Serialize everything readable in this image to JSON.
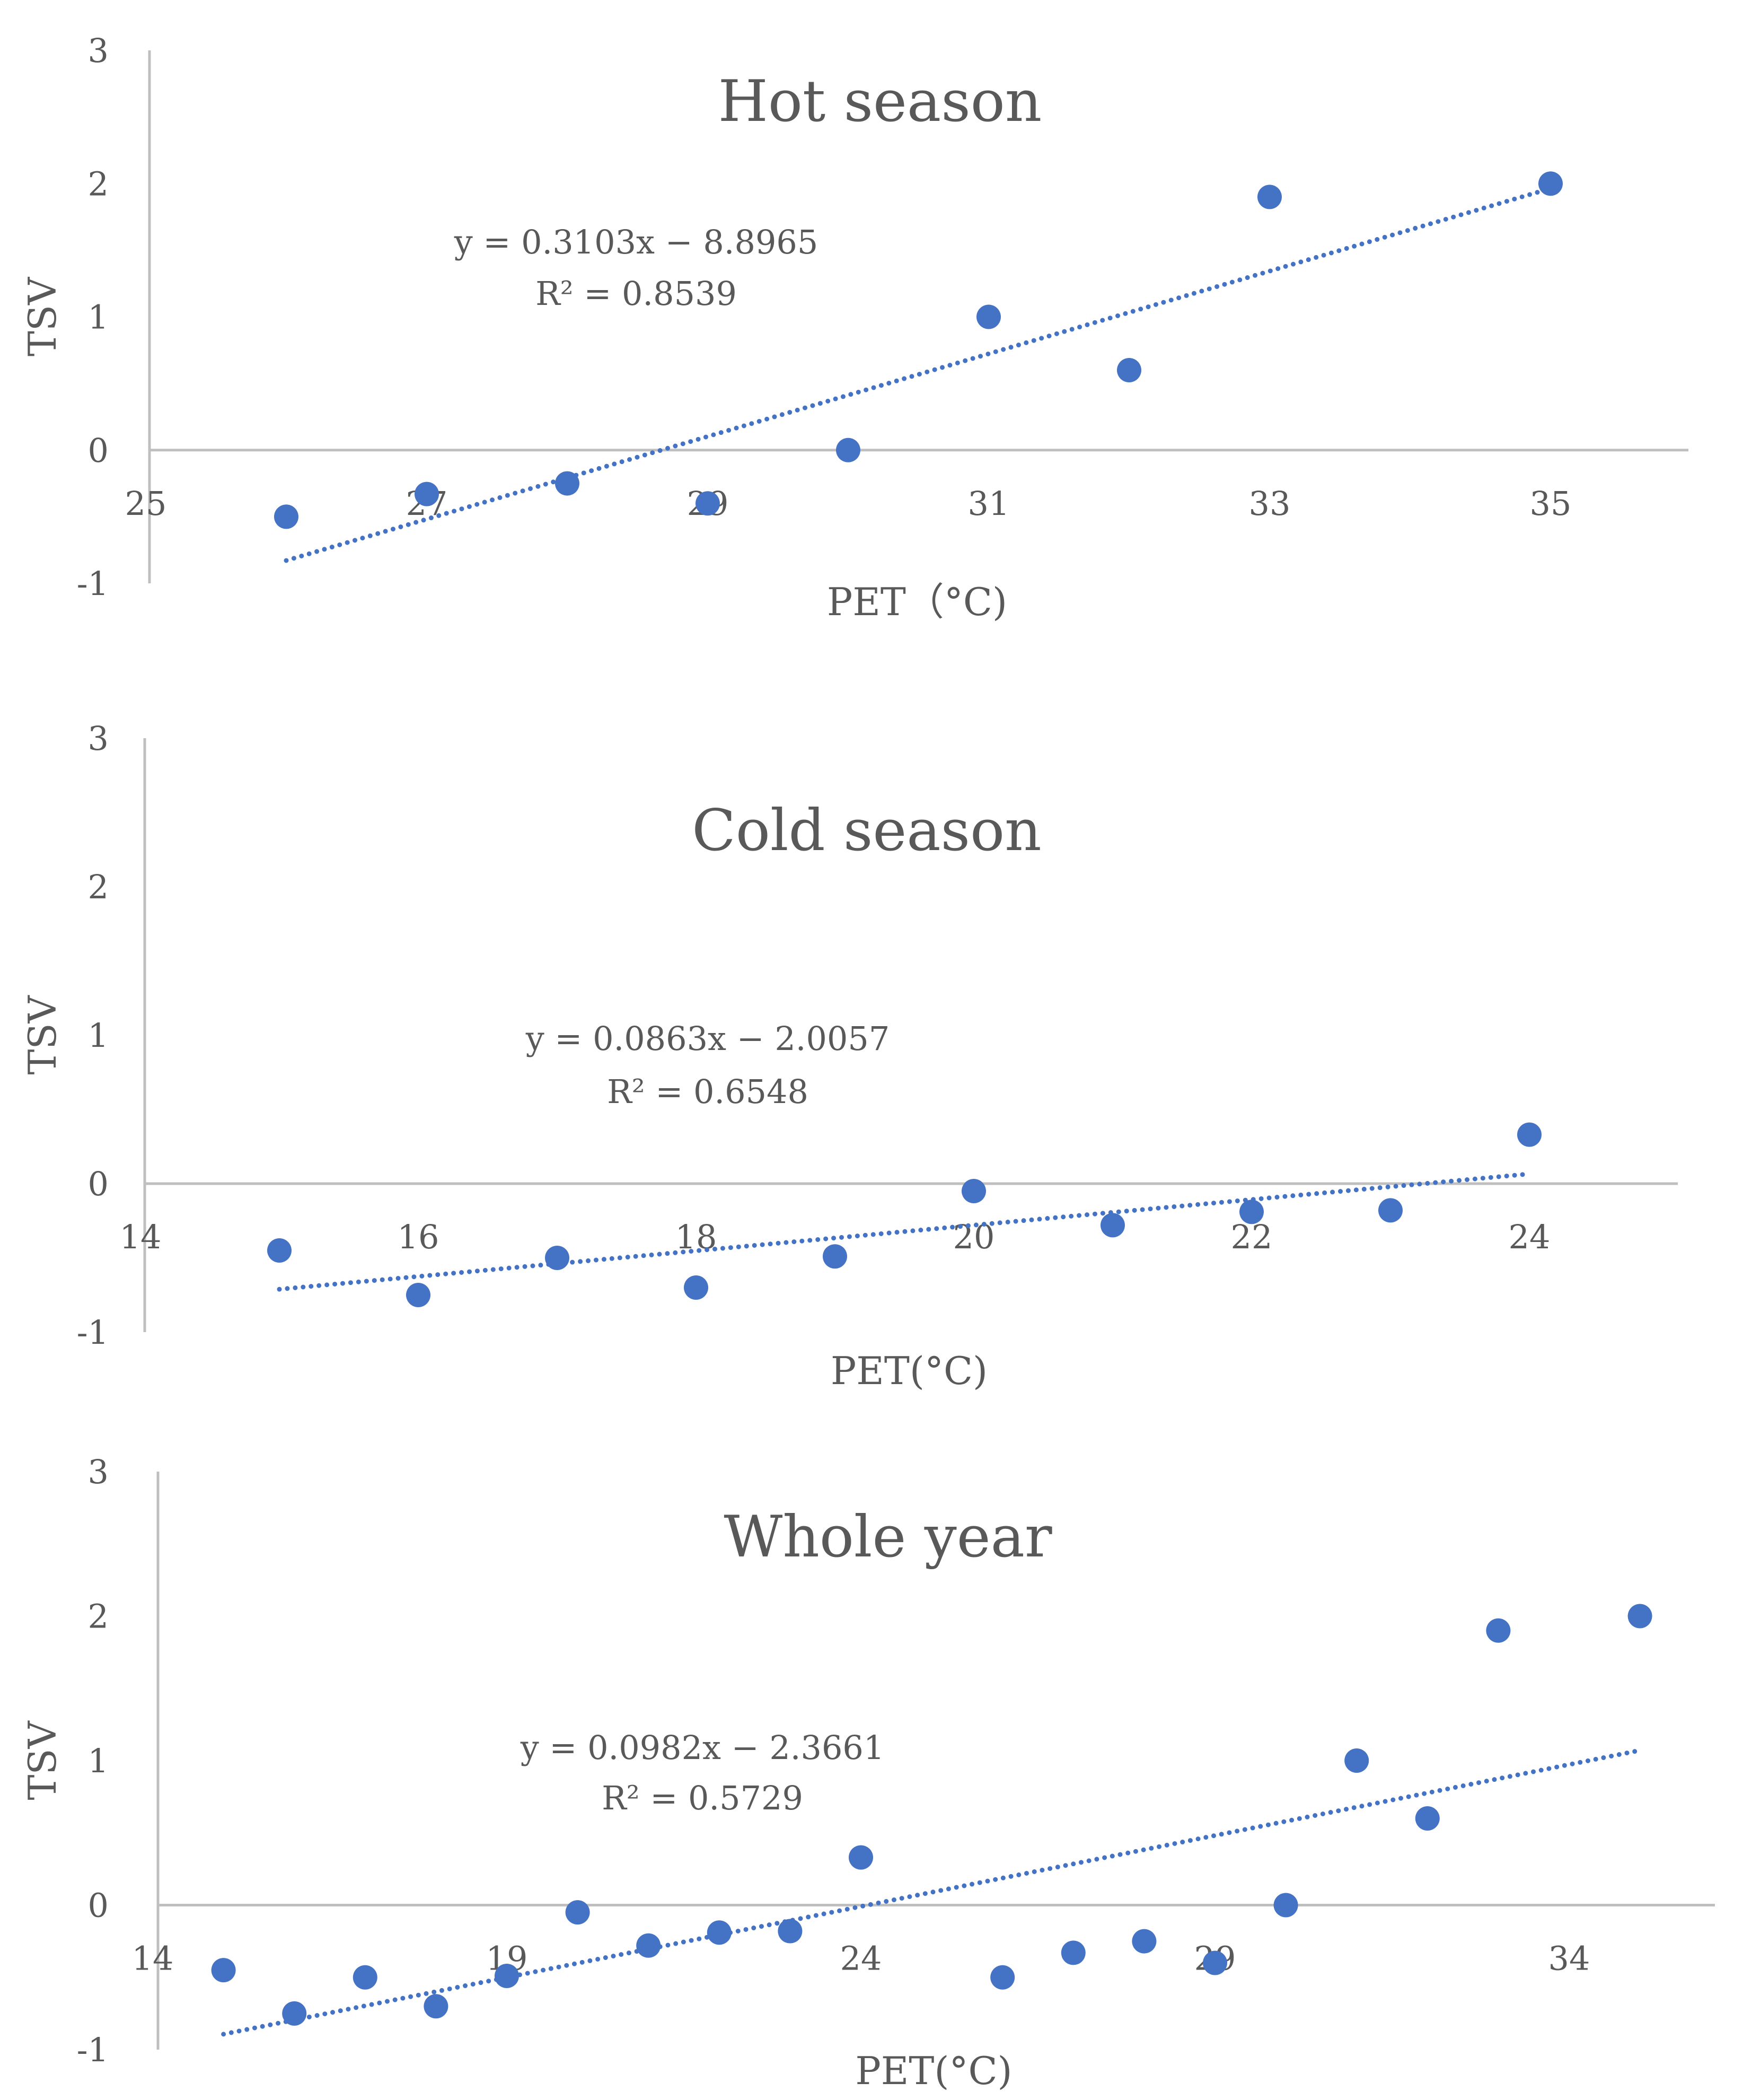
{
  "chart_data": [
    {
      "type": "scatter",
      "title": "Hot season",
      "xlabel": "PET（°C)",
      "ylabel": "TSV",
      "xlim": [
        25,
        36
      ],
      "ylim": [
        -1,
        3
      ],
      "xticks": [
        25,
        27,
        29,
        31,
        33,
        35
      ],
      "yticks": [
        -1,
        0,
        1,
        2,
        3
      ],
      "x": [
        26,
        27,
        28,
        29,
        30,
        31,
        32,
        33,
        35
      ],
      "y": [
        -0.5,
        -0.33,
        -0.25,
        -0.4,
        0,
        1,
        0.6,
        1.9,
        2
      ],
      "trendline": {
        "type": "linear",
        "style": "dotted",
        "slope": 0.3103,
        "intercept": -8.8965,
        "x_range": [
          26,
          35
        ]
      },
      "equation": "y = 0.3103x − 8.8965",
      "r2": "R² = 0.8539",
      "grid": false,
      "color": "#4472C4"
    },
    {
      "type": "scatter",
      "title": "Cold season",
      "xlabel": "PET(°C)",
      "ylabel": "TSV",
      "xlim": [
        14,
        25
      ],
      "ylim": [
        -1,
        3
      ],
      "xticks": [
        14,
        16,
        18,
        20,
        22,
        24
      ],
      "yticks": [
        -1,
        0,
        1,
        2,
        3
      ],
      "x": [
        15,
        16,
        17,
        18,
        19,
        20,
        21,
        22,
        23,
        24
      ],
      "y": [
        -0.45,
        -0.75,
        -0.5,
        -0.7,
        -0.49,
        -0.05,
        -0.28,
        -0.19,
        -0.18,
        0.33
      ],
      "trendline": {
        "type": "linear",
        "style": "dotted",
        "slope": 0.0863,
        "intercept": -2.0057,
        "x_range": [
          15,
          24
        ]
      },
      "equation": "y = 0.0863x − 2.0057",
      "r2": "R² = 0.6548",
      "grid": false,
      "color": "#4472C4"
    },
    {
      "type": "scatter",
      "title": "Whole year",
      "xlabel": "PET(°C)",
      "ylabel": "TSV",
      "xlim": [
        14,
        36
      ],
      "ylim": [
        -1,
        3
      ],
      "xticks": [
        14,
        19,
        24,
        29,
        34
      ],
      "yticks": [
        -1,
        0,
        1,
        2,
        3
      ],
      "x": [
        15,
        16,
        17,
        18,
        19,
        20,
        21,
        22,
        23,
        24,
        26,
        27,
        28,
        29,
        30,
        31,
        32,
        33,
        35
      ],
      "y": [
        -0.45,
        -0.75,
        -0.5,
        -0.7,
        -0.49,
        -0.05,
        -0.28,
        -0.19,
        -0.18,
        0.33,
        -0.5,
        -0.33,
        -0.25,
        -0.4,
        0,
        1,
        0.6,
        1.9,
        2
      ],
      "trendline": {
        "type": "linear",
        "style": "dotted",
        "slope": 0.0982,
        "intercept": -2.3661,
        "x_range": [
          15,
          35
        ]
      },
      "equation": "y = 0.0982x − 2.3661",
      "r2": "R² = 0.5729",
      "grid": false,
      "color": "#4472C4"
    }
  ]
}
